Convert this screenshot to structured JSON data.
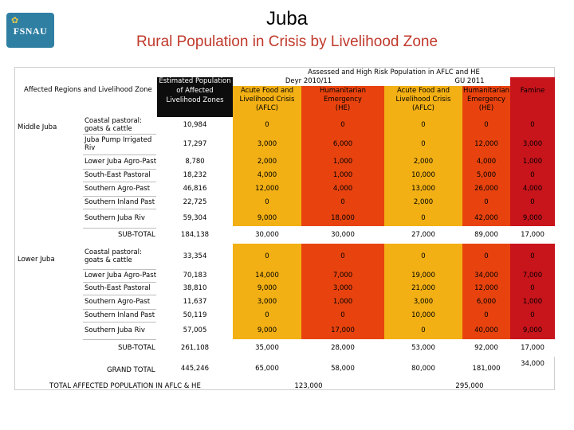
{
  "header": {
    "logo_text": "FSNAU",
    "title": "Juba",
    "subtitle": "Rural Population in Crisis by Livelihood Zone"
  },
  "table": {
    "region_header": "Affected Regions and Livelihood Zone",
    "pop_header": [
      "Estimated Population",
      "of Affected",
      "Livelihood Zones"
    ],
    "group_header": "Assessed and High Risk Population in AFLC and HE",
    "period1": "Deyr 2010/11",
    "period2": "GU 2011",
    "col_aflc": [
      "Acute Food and",
      "Livelihood Crisis",
      "(AFLC)"
    ],
    "col_he": [
      "Humanitarian",
      "Emergency",
      "(HE)"
    ],
    "col_famine": "Famine",
    "regions": [
      {
        "name": "Middle Juba",
        "rows": [
          {
            "zone": [
              "Coastal pastoral:",
              "goats & cattle"
            ],
            "pop": "10,984",
            "d_aflc": "0",
            "d_he": "0",
            "g_aflc": "0",
            "g_he": "0",
            "fam": "0"
          },
          {
            "zone": [
              "Juba Pump Irrigated",
              "Riv"
            ],
            "pop": "17,297",
            "d_aflc": "3,000",
            "d_he": "6,000",
            "g_aflc": "0",
            "g_he": "12,000",
            "fam": "3,000"
          },
          {
            "zone": [
              "Lower Juba Agro-Past"
            ],
            "pop": "8,780",
            "d_aflc": "2,000",
            "d_he": "1,000",
            "g_aflc": "2,000",
            "g_he": "4,000",
            "fam": "1,000"
          },
          {
            "zone": [
              "South-East Pastoral"
            ],
            "pop": "18,232",
            "d_aflc": "4,000",
            "d_he": "1,000",
            "g_aflc": "10,000",
            "g_he": "5,000",
            "fam": "0"
          },
          {
            "zone": [
              "Southern Agro-Past"
            ],
            "pop": "46,816",
            "d_aflc": "12,000",
            "d_he": "4,000",
            "g_aflc": "13,000",
            "g_he": "26,000",
            "fam": "4,000"
          },
          {
            "zone": [
              "Southern Inland Past"
            ],
            "pop": "22,725",
            "d_aflc": "0",
            "d_he": "0",
            "g_aflc": "2,000",
            "g_he": "0",
            "fam": "0"
          },
          {
            "zone": [
              "Southern Juba Riv"
            ],
            "pop": "59,304",
            "d_aflc": "9,000",
            "d_he": "18,000",
            "g_aflc": "0",
            "g_he": "42,000",
            "fam": "9,000"
          }
        ],
        "subtotal": {
          "label": "SUB-TOTAL",
          "pop": "184,138",
          "d_aflc": "30,000",
          "d_he": "30,000",
          "g_aflc": "27,000",
          "g_he": "89,000",
          "fam": "17,000"
        }
      },
      {
        "name": "Lower Juba",
        "rows": [
          {
            "zone": [
              "Coastal pastoral:",
              "goats & cattle"
            ],
            "pop": "33,354",
            "d_aflc": "0",
            "d_he": "0",
            "g_aflc": "0",
            "g_he": "0",
            "fam": "0"
          },
          {
            "zone": [
              "Lower Juba Agro-Past"
            ],
            "pop": "70,183",
            "d_aflc": "14,000",
            "d_he": "7,000",
            "g_aflc": "19,000",
            "g_he": "34,000",
            "fam": "7,000"
          },
          {
            "zone": [
              "South-East Pastoral"
            ],
            "pop": "38,810",
            "d_aflc": "9,000",
            "d_he": "3,000",
            "g_aflc": "21,000",
            "g_he": "12,000",
            "fam": "0"
          },
          {
            "zone": [
              "Southern Agro-Past"
            ],
            "pop": "11,637",
            "d_aflc": "3,000",
            "d_he": "1,000",
            "g_aflc": "3,000",
            "g_he": "6,000",
            "fam": "1,000"
          },
          {
            "zone": [
              "Southern Inland Past"
            ],
            "pop": "50,119",
            "d_aflc": "0",
            "d_he": "0",
            "g_aflc": "10,000",
            "g_he": "0",
            "fam": "0"
          },
          {
            "zone": [
              "Southern Juba Riv"
            ],
            "pop": "57,005",
            "d_aflc": "9,000",
            "d_he": "17,000",
            "g_aflc": "0",
            "g_he": "40,000",
            "fam": "9,000"
          }
        ],
        "subtotal": {
          "label": "SUB-TOTAL",
          "pop": "261,108",
          "d_aflc": "35,000",
          "d_he": "28,000",
          "g_aflc": "53,000",
          "g_he": "92,000",
          "fam": "17,000"
        }
      }
    ],
    "grand_total": {
      "label": "GRAND TOTAL",
      "pop": "445,246",
      "d_aflc": "65,000",
      "d_he": "58,000",
      "g_aflc": "80,000",
      "g_he": "181,000",
      "fam": "34,000"
    },
    "affected": {
      "label": "TOTAL AFFECTED POPULATION IN AFLC & HE",
      "deyr": "123,000",
      "gu": "295,000"
    },
    "colors": {
      "aflc": "#f2b015",
      "he": "#e8430e",
      "famine": "#c8141b",
      "header_black": "#0d0d0d",
      "title_red": "#c0392b"
    }
  }
}
